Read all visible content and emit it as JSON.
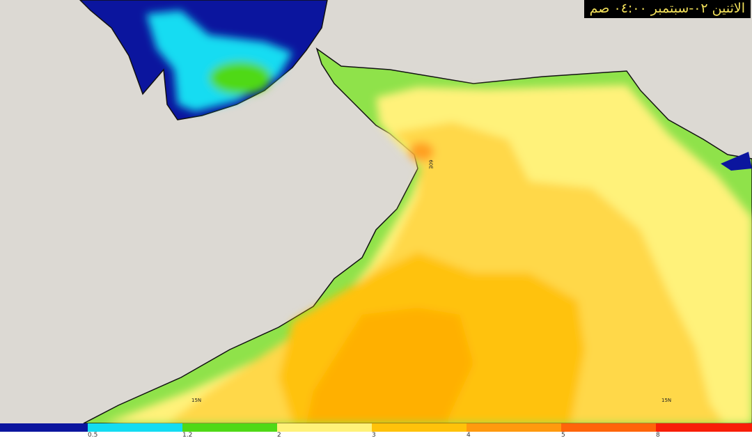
{
  "title": "الاثنين ٠٢-سبتمبر ٠٤:٠٠ صم",
  "grid_labels": {
    "lat_left": "15N",
    "lat_right": "15N",
    "lon": "60E"
  },
  "colorbar": {
    "ticks": [
      "0.5",
      "1.2",
      "2",
      "3",
      "4",
      "5",
      "8"
    ],
    "colors": [
      "#0b159e",
      "#13dcf2",
      "#4fd916",
      "#fff27a",
      "#ffc20a",
      "#ff9a0e",
      "#ff650a",
      "#f81e08"
    ]
  },
  "colors": {
    "land": "#dcd9d3",
    "sea_coastal": "#8fe24a"
  }
}
